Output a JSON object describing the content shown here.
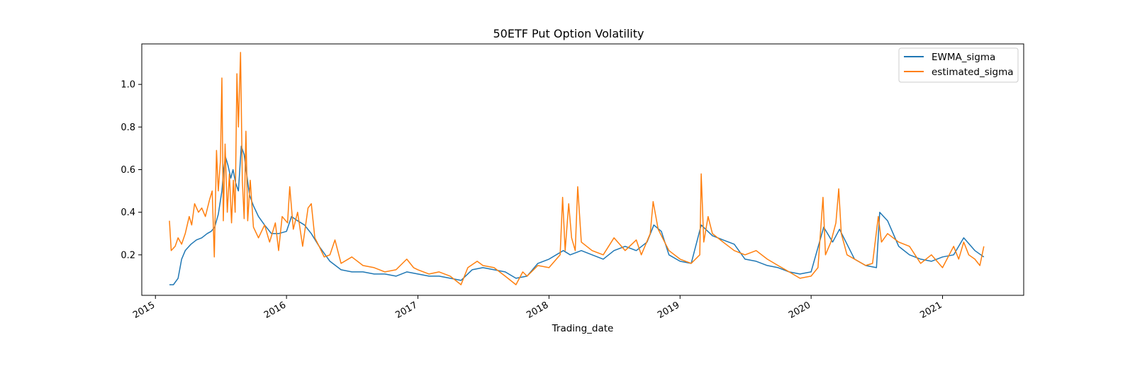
{
  "chart_data": {
    "type": "line",
    "title": "50ETF Put Option Volatility",
    "xlabel": "Trading_date",
    "ylabel": "",
    "xlim": [
      "2014-11-24",
      "2021-08-15"
    ],
    "ylim": [
      0.01,
      1.19
    ],
    "x_ticks": [
      "2015",
      "2016",
      "2017",
      "2018",
      "2019",
      "2020",
      "2021"
    ],
    "y_ticks": [
      "0.2",
      "0.4",
      "0.6",
      "0.8",
      "1.0"
    ],
    "legend_position": "upper right",
    "grid": false,
    "series": [
      {
        "name": "EWMA_sigma",
        "color": "#1f77b4",
        "points": [
          [
            "2015-02-09",
            0.06
          ],
          [
            "2015-02-20",
            0.06
          ],
          [
            "2015-03-05",
            0.09
          ],
          [
            "2015-03-15",
            0.18
          ],
          [
            "2015-03-25",
            0.22
          ],
          [
            "2015-04-10",
            0.25
          ],
          [
            "2015-04-25",
            0.27
          ],
          [
            "2015-05-10",
            0.28
          ],
          [
            "2015-05-25",
            0.3
          ],
          [
            "2015-06-05",
            0.31
          ],
          [
            "2015-06-15",
            0.33
          ],
          [
            "2015-06-25",
            0.39
          ],
          [
            "2015-07-05",
            0.5
          ],
          [
            "2015-07-10",
            0.6
          ],
          [
            "2015-07-15",
            0.66
          ],
          [
            "2015-07-22",
            0.62
          ],
          [
            "2015-07-30",
            0.56
          ],
          [
            "2015-08-05",
            0.6
          ],
          [
            "2015-08-12",
            0.54
          ],
          [
            "2015-08-20",
            0.5
          ],
          [
            "2015-08-28",
            0.71
          ],
          [
            "2015-09-05",
            0.67
          ],
          [
            "2015-09-12",
            0.58
          ],
          [
            "2015-09-20",
            0.48
          ],
          [
            "2015-10-01",
            0.43
          ],
          [
            "2015-10-15",
            0.38
          ],
          [
            "2015-11-01",
            0.34
          ],
          [
            "2015-11-20",
            0.3
          ],
          [
            "2015-12-10",
            0.3
          ],
          [
            "2016-01-01",
            0.31
          ],
          [
            "2016-01-15",
            0.38
          ],
          [
            "2016-02-01",
            0.36
          ],
          [
            "2016-02-20",
            0.34
          ],
          [
            "2016-03-10",
            0.3
          ],
          [
            "2016-04-01",
            0.24
          ],
          [
            "2016-05-01",
            0.17
          ],
          [
            "2016-06-01",
            0.13
          ],
          [
            "2016-07-01",
            0.12
          ],
          [
            "2016-08-01",
            0.12
          ],
          [
            "2016-09-01",
            0.11
          ],
          [
            "2016-10-01",
            0.11
          ],
          [
            "2016-11-01",
            0.1
          ],
          [
            "2016-12-01",
            0.12
          ],
          [
            "2017-01-01",
            0.11
          ],
          [
            "2017-02-01",
            0.1
          ],
          [
            "2017-03-01",
            0.1
          ],
          [
            "2017-04-01",
            0.09
          ],
          [
            "2017-05-01",
            0.08
          ],
          [
            "2017-06-01",
            0.13
          ],
          [
            "2017-07-01",
            0.14
          ],
          [
            "2017-08-01",
            0.13
          ],
          [
            "2017-09-01",
            0.12
          ],
          [
            "2017-10-01",
            0.09
          ],
          [
            "2017-11-01",
            0.1
          ],
          [
            "2017-12-01",
            0.16
          ],
          [
            "2018-01-01",
            0.18
          ],
          [
            "2018-02-10",
            0.22
          ],
          [
            "2018-03-01",
            0.2
          ],
          [
            "2018-04-01",
            0.22
          ],
          [
            "2018-05-01",
            0.2
          ],
          [
            "2018-06-01",
            0.18
          ],
          [
            "2018-07-01",
            0.22
          ],
          [
            "2018-08-01",
            0.24
          ],
          [
            "2018-09-01",
            0.22
          ],
          [
            "2018-10-01",
            0.26
          ],
          [
            "2018-10-20",
            0.34
          ],
          [
            "2018-11-10",
            0.31
          ],
          [
            "2018-12-01",
            0.2
          ],
          [
            "2019-01-01",
            0.17
          ],
          [
            "2019-02-01",
            0.16
          ],
          [
            "2019-03-01",
            0.34
          ],
          [
            "2019-04-01",
            0.29
          ],
          [
            "2019-05-01",
            0.27
          ],
          [
            "2019-06-01",
            0.25
          ],
          [
            "2019-07-01",
            0.18
          ],
          [
            "2019-08-01",
            0.17
          ],
          [
            "2019-09-01",
            0.15
          ],
          [
            "2019-10-01",
            0.14
          ],
          [
            "2019-11-01",
            0.12
          ],
          [
            "2019-12-01",
            0.11
          ],
          [
            "2020-01-01",
            0.12
          ],
          [
            "2020-02-05",
            0.33
          ],
          [
            "2020-03-01",
            0.26
          ],
          [
            "2020-03-20",
            0.32
          ],
          [
            "2020-04-10",
            0.25
          ],
          [
            "2020-05-01",
            0.18
          ],
          [
            "2020-06-01",
            0.15
          ],
          [
            "2020-07-01",
            0.14
          ],
          [
            "2020-07-10",
            0.4
          ],
          [
            "2020-08-01",
            0.36
          ],
          [
            "2020-09-01",
            0.24
          ],
          [
            "2020-10-01",
            0.2
          ],
          [
            "2020-11-01",
            0.18
          ],
          [
            "2020-12-01",
            0.17
          ],
          [
            "2021-01-01",
            0.19
          ],
          [
            "2021-02-01",
            0.2
          ],
          [
            "2021-03-01",
            0.28
          ],
          [
            "2021-04-01",
            0.22
          ],
          [
            "2021-04-26",
            0.19
          ]
        ]
      },
      {
        "name": "estimated_sigma",
        "color": "#ff7f0e",
        "points": [
          [
            "2015-02-09",
            0.36
          ],
          [
            "2015-02-14",
            0.22
          ],
          [
            "2015-02-25",
            0.24
          ],
          [
            "2015-03-05",
            0.28
          ],
          [
            "2015-03-15",
            0.25
          ],
          [
            "2015-03-25",
            0.3
          ],
          [
            "2015-04-05",
            0.38
          ],
          [
            "2015-04-12",
            0.34
          ],
          [
            "2015-04-20",
            0.44
          ],
          [
            "2015-05-01",
            0.4
          ],
          [
            "2015-05-10",
            0.42
          ],
          [
            "2015-05-20",
            0.38
          ],
          [
            "2015-06-01",
            0.46
          ],
          [
            "2015-06-08",
            0.5
          ],
          [
            "2015-06-14",
            0.19
          ],
          [
            "2015-06-20",
            0.69
          ],
          [
            "2015-06-25",
            0.5
          ],
          [
            "2015-07-01",
            0.64
          ],
          [
            "2015-07-05",
            1.03
          ],
          [
            "2015-07-09",
            0.36
          ],
          [
            "2015-07-14",
            0.72
          ],
          [
            "2015-07-20",
            0.4
          ],
          [
            "2015-07-26",
            0.58
          ],
          [
            "2015-08-01",
            0.35
          ],
          [
            "2015-08-06",
            0.55
          ],
          [
            "2015-08-11",
            0.4
          ],
          [
            "2015-08-16",
            1.05
          ],
          [
            "2015-08-20",
            0.8
          ],
          [
            "2015-08-26",
            1.15
          ],
          [
            "2015-08-31",
            0.55
          ],
          [
            "2015-09-05",
            0.37
          ],
          [
            "2015-09-10",
            0.78
          ],
          [
            "2015-09-15",
            0.36
          ],
          [
            "2015-09-22",
            0.55
          ],
          [
            "2015-10-01",
            0.33
          ],
          [
            "2015-10-15",
            0.28
          ],
          [
            "2015-11-01",
            0.34
          ],
          [
            "2015-11-15",
            0.26
          ],
          [
            "2015-12-01",
            0.35
          ],
          [
            "2015-12-10",
            0.22
          ],
          [
            "2015-12-20",
            0.38
          ],
          [
            "2016-01-04",
            0.35
          ],
          [
            "2016-01-10",
            0.52
          ],
          [
            "2016-01-20",
            0.32
          ],
          [
            "2016-02-01",
            0.4
          ],
          [
            "2016-02-15",
            0.24
          ],
          [
            "2016-03-01",
            0.42
          ],
          [
            "2016-03-10",
            0.44
          ],
          [
            "2016-03-20",
            0.28
          ],
          [
            "2016-04-01",
            0.24
          ],
          [
            "2016-04-15",
            0.19
          ],
          [
            "2016-05-01",
            0.2
          ],
          [
            "2016-05-15",
            0.27
          ],
          [
            "2016-06-01",
            0.16
          ],
          [
            "2016-07-01",
            0.19
          ],
          [
            "2016-08-01",
            0.15
          ],
          [
            "2016-09-01",
            0.14
          ],
          [
            "2016-10-01",
            0.12
          ],
          [
            "2016-11-01",
            0.13
          ],
          [
            "2016-12-01",
            0.18
          ],
          [
            "2016-12-20",
            0.14
          ],
          [
            "2017-01-01",
            0.13
          ],
          [
            "2017-02-01",
            0.11
          ],
          [
            "2017-03-01",
            0.12
          ],
          [
            "2017-04-01",
            0.1
          ],
          [
            "2017-05-01",
            0.06
          ],
          [
            "2017-05-20",
            0.14
          ],
          [
            "2017-06-15",
            0.17
          ],
          [
            "2017-07-01",
            0.15
          ],
          [
            "2017-08-01",
            0.14
          ],
          [
            "2017-09-01",
            0.1
          ],
          [
            "2017-10-01",
            0.06
          ],
          [
            "2017-10-20",
            0.12
          ],
          [
            "2017-11-01",
            0.1
          ],
          [
            "2017-12-01",
            0.15
          ],
          [
            "2018-01-01",
            0.14
          ],
          [
            "2018-02-01",
            0.2
          ],
          [
            "2018-02-08",
            0.47
          ],
          [
            "2018-02-15",
            0.22
          ],
          [
            "2018-02-25",
            0.44
          ],
          [
            "2018-03-05",
            0.28
          ],
          [
            "2018-03-15",
            0.22
          ],
          [
            "2018-03-22",
            0.52
          ],
          [
            "2018-04-01",
            0.26
          ],
          [
            "2018-05-01",
            0.22
          ],
          [
            "2018-06-01",
            0.2
          ],
          [
            "2018-07-01",
            0.28
          ],
          [
            "2018-08-01",
            0.22
          ],
          [
            "2018-09-01",
            0.27
          ],
          [
            "2018-09-15",
            0.2
          ],
          [
            "2018-10-10",
            0.3
          ],
          [
            "2018-10-18",
            0.45
          ],
          [
            "2018-11-01",
            0.32
          ],
          [
            "2018-12-01",
            0.22
          ],
          [
            "2019-01-01",
            0.18
          ],
          [
            "2019-02-01",
            0.16
          ],
          [
            "2019-02-25",
            0.2
          ],
          [
            "2019-03-01",
            0.58
          ],
          [
            "2019-03-08",
            0.26
          ],
          [
            "2019-03-20",
            0.38
          ],
          [
            "2019-04-01",
            0.3
          ],
          [
            "2019-05-01",
            0.26
          ],
          [
            "2019-06-01",
            0.22
          ],
          [
            "2019-07-01",
            0.2
          ],
          [
            "2019-08-01",
            0.22
          ],
          [
            "2019-09-01",
            0.18
          ],
          [
            "2019-10-01",
            0.15
          ],
          [
            "2019-11-01",
            0.12
          ],
          [
            "2019-12-01",
            0.09
          ],
          [
            "2020-01-01",
            0.1
          ],
          [
            "2020-01-20",
            0.14
          ],
          [
            "2020-02-03",
            0.47
          ],
          [
            "2020-02-10",
            0.2
          ],
          [
            "2020-02-25",
            0.26
          ],
          [
            "2020-03-10",
            0.35
          ],
          [
            "2020-03-18",
            0.51
          ],
          [
            "2020-03-25",
            0.3
          ],
          [
            "2020-04-10",
            0.2
          ],
          [
            "2020-05-01",
            0.18
          ],
          [
            "2020-06-01",
            0.15
          ],
          [
            "2020-06-20",
            0.16
          ],
          [
            "2020-07-06",
            0.38
          ],
          [
            "2020-07-15",
            0.26
          ],
          [
            "2020-08-01",
            0.3
          ],
          [
            "2020-09-01",
            0.26
          ],
          [
            "2020-10-01",
            0.24
          ],
          [
            "2020-11-01",
            0.16
          ],
          [
            "2020-12-01",
            0.2
          ],
          [
            "2021-01-01",
            0.14
          ],
          [
            "2021-02-01",
            0.24
          ],
          [
            "2021-02-15",
            0.18
          ],
          [
            "2021-03-01",
            0.26
          ],
          [
            "2021-03-15",
            0.2
          ],
          [
            "2021-04-01",
            0.18
          ],
          [
            "2021-04-15",
            0.15
          ],
          [
            "2021-04-26",
            0.24
          ]
        ]
      }
    ]
  }
}
